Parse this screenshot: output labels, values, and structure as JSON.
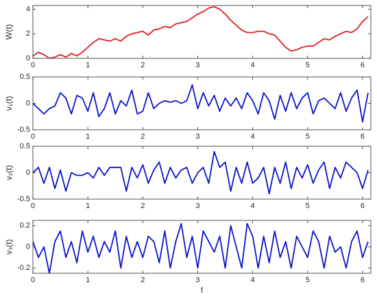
{
  "chart_data": [
    {
      "type": "line",
      "ylabel": "W(t)",
      "color": "#e41a1c",
      "x": [
        0,
        0.1,
        0.2,
        0.3,
        0.4,
        0.5,
        0.6,
        0.7,
        0.8,
        0.9,
        1,
        1.1,
        1.2,
        1.3,
        1.4,
        1.5,
        1.6,
        1.7,
        1.8,
        1.9,
        2,
        2.1,
        2.2,
        2.3,
        2.4,
        2.5,
        2.6,
        2.7,
        2.8,
        2.9,
        3,
        3.1,
        3.2,
        3.3,
        3.4,
        3.5,
        3.6,
        3.7,
        3.8,
        3.9,
        4,
        4.1,
        4.2,
        4.3,
        4.4,
        4.5,
        4.6,
        4.7,
        4.8,
        4.9,
        5,
        5.1,
        5.2,
        5.3,
        5.4,
        5.5,
        5.6,
        5.7,
        5.8,
        5.9,
        6,
        6.1
      ],
      "values": [
        0.2,
        0.5,
        0.3,
        0,
        0.1,
        0.3,
        0.1,
        0.4,
        0.2,
        0.5,
        0.9,
        1.3,
        1.6,
        1.5,
        1.4,
        1.6,
        1.4,
        1.8,
        2.0,
        2.1,
        2.2,
        1.9,
        2.3,
        2.4,
        2.6,
        2.5,
        2.8,
        2.9,
        3.0,
        3.3,
        3.6,
        3.8,
        4.1,
        4.2,
        4.0,
        3.6,
        3.1,
        2.7,
        2.3,
        2.1,
        2.1,
        2.2,
        2.2,
        2.0,
        1.9,
        1.4,
        0.9,
        0.6,
        0.7,
        0.9,
        1.0,
        1.0,
        1.3,
        1.6,
        1.5,
        1.8,
        2.0,
        2.2,
        2.1,
        2.4,
        3.0,
        3.4
      ],
      "xlim": [
        0,
        6.15
      ],
      "xticks": [
        0,
        1,
        2,
        3,
        4,
        5,
        6
      ],
      "ylim": [
        0,
        4.3
      ],
      "yticks": [
        0,
        2,
        4
      ]
    },
    {
      "type": "line",
      "ylabel": "v₁(t)",
      "color": "#0a14c8",
      "x": [
        0,
        0.1,
        0.2,
        0.3,
        0.4,
        0.5,
        0.6,
        0.7,
        0.8,
        0.9,
        1,
        1.1,
        1.2,
        1.3,
        1.4,
        1.5,
        1.6,
        1.7,
        1.8,
        1.9,
        2,
        2.1,
        2.2,
        2.3,
        2.4,
        2.5,
        2.6,
        2.7,
        2.8,
        2.9,
        3,
        3.1,
        3.2,
        3.3,
        3.4,
        3.5,
        3.6,
        3.7,
        3.8,
        3.9,
        4,
        4.1,
        4.2,
        4.3,
        4.4,
        4.5,
        4.6,
        4.7,
        4.8,
        4.9,
        5,
        5.1,
        5.2,
        5.3,
        5.4,
        5.5,
        5.6,
        5.7,
        5.8,
        5.9,
        6,
        6.1
      ],
      "values": [
        0,
        -0.1,
        -0.2,
        -0.1,
        -0.05,
        0.2,
        0.1,
        -0.2,
        0.15,
        0.1,
        -0.15,
        0.2,
        -0.25,
        -0.1,
        0.2,
        -0.2,
        0.05,
        -0.05,
        0.25,
        -0.2,
        -0.15,
        0.2,
        -0.1,
        0,
        0.05,
        0.02,
        0.05,
        0,
        0.05,
        0.35,
        -0.1,
        0.2,
        -0.05,
        0.15,
        -0.15,
        0.1,
        -0.05,
        0.1,
        -0.1,
        0.2,
        0.05,
        -0.2,
        0.2,
        0.05,
        -0.3,
        0.15,
        -0.15,
        0.2,
        -0.1,
        0.1,
        0.2,
        -0.2,
        0.05,
        0.1,
        0,
        -0.1,
        0.2,
        -0.15,
        0.1,
        0.25,
        -0.35,
        0.2
      ],
      "xlim": [
        0,
        6.15
      ],
      "xticks": [
        0,
        1,
        2,
        3,
        4,
        5,
        6
      ],
      "ylim": [
        -0.5,
        0.5
      ],
      "yticks": [
        -0.5,
        0,
        0.5
      ]
    },
    {
      "type": "line",
      "ylabel": "v₂(t)",
      "color": "#0a14c8",
      "x": [
        0,
        0.1,
        0.2,
        0.3,
        0.4,
        0.5,
        0.6,
        0.7,
        0.8,
        0.9,
        1,
        1.1,
        1.2,
        1.3,
        1.4,
        1.5,
        1.6,
        1.7,
        1.8,
        1.9,
        2,
        2.1,
        2.2,
        2.3,
        2.4,
        2.5,
        2.6,
        2.7,
        2.8,
        2.9,
        3,
        3.1,
        3.2,
        3.3,
        3.4,
        3.5,
        3.6,
        3.7,
        3.8,
        3.9,
        4,
        4.1,
        4.2,
        4.3,
        4.4,
        4.5,
        4.6,
        4.7,
        4.8,
        4.9,
        5,
        5.1,
        5.2,
        5.3,
        5.4,
        5.5,
        5.6,
        5.7,
        5.8,
        5.9,
        6,
        6.1
      ],
      "values": [
        0,
        0.1,
        -0.2,
        0.1,
        -0.3,
        0.05,
        -0.35,
        0,
        -0.05,
        -0.05,
        0,
        -0.1,
        0.1,
        -0.05,
        0.1,
        0.1,
        0.1,
        -0.35,
        0.1,
        -0.1,
        0.15,
        -0.2,
        0.05,
        0.2,
        -0.2,
        0.1,
        -0.1,
        0.05,
        0.1,
        -0.2,
        0,
        0.1,
        -0.2,
        0.4,
        0.1,
        0.2,
        -0.35,
        0.1,
        -0.2,
        0.2,
        -0.2,
        -0.1,
        0.1,
        -0.4,
        0.1,
        -0.2,
        0.2,
        -0.3,
        0.1,
        -0.1,
        0.15,
        -0.2,
        0.05,
        0.2,
        -0.3,
        0.1,
        -0.1,
        0.2,
        0.1,
        0,
        -0.3,
        0.05
      ],
      "xlim": [
        0,
        6.15
      ],
      "xticks": [
        0,
        1,
        2,
        3,
        4,
        5,
        6
      ],
      "ylim": [
        -0.5,
        0.5
      ],
      "yticks": [
        -0.5,
        0,
        0.5
      ]
    },
    {
      "type": "line",
      "ylabel": "v₃(t)",
      "xlabel": "t",
      "color": "#0a14c8",
      "x": [
        0,
        0.1,
        0.2,
        0.3,
        0.4,
        0.5,
        0.6,
        0.7,
        0.8,
        0.9,
        1,
        1.1,
        1.2,
        1.3,
        1.4,
        1.5,
        1.6,
        1.7,
        1.8,
        1.9,
        2,
        2.1,
        2.2,
        2.3,
        2.4,
        2.5,
        2.6,
        2.7,
        2.8,
        2.9,
        3,
        3.1,
        3.2,
        3.3,
        3.4,
        3.5,
        3.6,
        3.7,
        3.8,
        3.9,
        4,
        4.1,
        4.2,
        4.3,
        4.4,
        4.5,
        4.6,
        4.7,
        4.8,
        4.9,
        5,
        5.1,
        5.2,
        5.3,
        5.4,
        5.5,
        5.6,
        5.7,
        5.8,
        5.9,
        6,
        6.1
      ],
      "values": [
        0.05,
        -0.1,
        0,
        -0.25,
        0.05,
        0.15,
        -0.1,
        0.05,
        -0.15,
        0.15,
        -0.05,
        0.1,
        -0.1,
        0.05,
        -0.05,
        0.15,
        -0.2,
        0.1,
        -0.1,
        0.05,
        -0.1,
        0.1,
        0.05,
        -0.15,
        0.15,
        -0.2,
        0.05,
        0.22,
        -0.1,
        0.1,
        -0.2,
        0.15,
        0.05,
        -0.05,
        0.1,
        -0.2,
        0.2,
        0,
        -0.2,
        0.22,
        0.1,
        -0.2,
        0.1,
        -0.15,
        0.15,
        -0.1,
        0.05,
        -0.2,
        0.1,
        0,
        -0.1,
        0.15,
        0.05,
        -0.2,
        0.1,
        -0.05,
        0,
        -0.2,
        0.05,
        0.15,
        -0.1,
        0.05
      ],
      "xlim": [
        0,
        6.15
      ],
      "xticks": [
        0,
        1,
        2,
        3,
        4,
        5,
        6
      ],
      "ylim": [
        -0.25,
        0.25
      ],
      "yticks": [
        -0.2,
        0,
        0.2
      ]
    }
  ]
}
